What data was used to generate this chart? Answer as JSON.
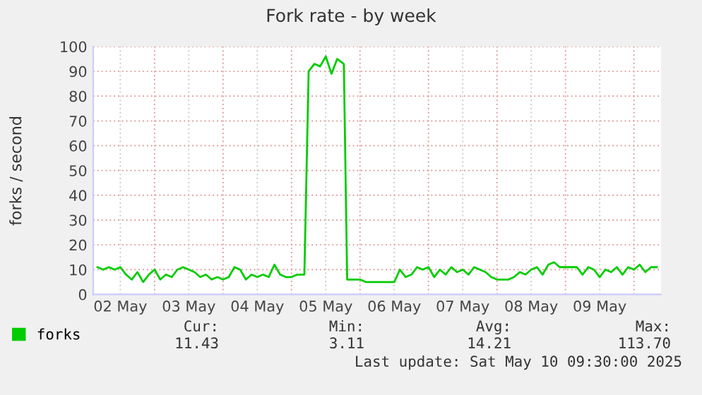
{
  "chart_data": {
    "type": "line",
    "title": "Fork rate - by week",
    "ylabel": "forks / second",
    "x": [
      "2025-05-02T04:00",
      "2025-05-02T06:00",
      "2025-05-02T08:00",
      "2025-05-02T10:00",
      "2025-05-02T12:00",
      "2025-05-02T14:00",
      "2025-05-02T16:00",
      "2025-05-02T18:00",
      "2025-05-02T20:00",
      "2025-05-02T22:00",
      "2025-05-03T00:00",
      "2025-05-03T02:00",
      "2025-05-03T04:00",
      "2025-05-03T06:00",
      "2025-05-03T08:00",
      "2025-05-03T10:00",
      "2025-05-03T12:00",
      "2025-05-03T14:00",
      "2025-05-03T16:00",
      "2025-05-03T18:00",
      "2025-05-03T20:00",
      "2025-05-03T22:00",
      "2025-05-04T00:00",
      "2025-05-04T02:00",
      "2025-05-04T04:00",
      "2025-05-04T06:00",
      "2025-05-04T08:00",
      "2025-05-04T10:00",
      "2025-05-04T12:00",
      "2025-05-04T14:00",
      "2025-05-04T16:00",
      "2025-05-04T18:00",
      "2025-05-04T20:00",
      "2025-05-04T22:00",
      "2025-05-05T00:00",
      "2025-05-05T02:00",
      "2025-05-05T04:30",
      "2025-05-05T06:00",
      "2025-05-05T08:00",
      "2025-05-05T10:00",
      "2025-05-05T12:00",
      "2025-05-05T14:00",
      "2025-05-05T16:00",
      "2025-05-05T18:20",
      "2025-05-05T19:30",
      "2025-05-05T22:00",
      "2025-05-06T00:00",
      "2025-05-06T02:00",
      "2025-05-06T04:00",
      "2025-05-06T06:00",
      "2025-05-06T08:00",
      "2025-05-06T10:00",
      "2025-05-06T12:00",
      "2025-05-06T14:00",
      "2025-05-06T16:00",
      "2025-05-06T18:00",
      "2025-05-06T20:00",
      "2025-05-06T22:00",
      "2025-05-07T00:00",
      "2025-05-07T02:00",
      "2025-05-07T04:00",
      "2025-05-07T06:00",
      "2025-05-07T08:00",
      "2025-05-07T10:00",
      "2025-05-07T12:00",
      "2025-05-07T14:00",
      "2025-05-07T16:00",
      "2025-05-07T18:00",
      "2025-05-07T20:00",
      "2025-05-07T22:00",
      "2025-05-08T00:00",
      "2025-05-08T02:00",
      "2025-05-08T04:00",
      "2025-05-08T06:00",
      "2025-05-08T08:00",
      "2025-05-08T10:00",
      "2025-05-08T12:00",
      "2025-05-08T14:00",
      "2025-05-08T16:00",
      "2025-05-08T18:00",
      "2025-05-08T20:00",
      "2025-05-08T22:00",
      "2025-05-09T00:00",
      "2025-05-09T02:00",
      "2025-05-09T04:00",
      "2025-05-09T06:00",
      "2025-05-09T08:00",
      "2025-05-09T10:00",
      "2025-05-09T12:00",
      "2025-05-09T14:00",
      "2025-05-09T16:00",
      "2025-05-09T18:00",
      "2025-05-09T20:00",
      "2025-05-09T22:00",
      "2025-05-10T00:00",
      "2025-05-10T02:00",
      "2025-05-10T04:00",
      "2025-05-10T06:00",
      "2025-05-10T08:00"
    ],
    "series": [
      {
        "name": "forks",
        "color": "#00cc00",
        "values": [
          11,
          10,
          11,
          10,
          11,
          8,
          6,
          9,
          5,
          8,
          10,
          6,
          8,
          7,
          10,
          11,
          10,
          9,
          7,
          8,
          6,
          7,
          6,
          7,
          11,
          10,
          6,
          8,
          7,
          8,
          7,
          12,
          8,
          7,
          7,
          8,
          8,
          90,
          93,
          92,
          96,
          89,
          95,
          93,
          6,
          6,
          6,
          5,
          5,
          5,
          5,
          5,
          5,
          10,
          7,
          8,
          11,
          10,
          11,
          7,
          10,
          8,
          11,
          9,
          10,
          8,
          11,
          10,
          9,
          7,
          6,
          6,
          6,
          7,
          9,
          8,
          10,
          11,
          8,
          12,
          13,
          11,
          11,
          11,
          11,
          8,
          11,
          10,
          7,
          10,
          9,
          11,
          8,
          11,
          10,
          12,
          9,
          11,
          11
        ]
      }
    ],
    "xlim": [
      "2025-05-02T02:30",
      "2025-05-10T09:30"
    ],
    "xticks": [
      {
        "value": "2025-05-02T12:00",
        "label": "02 May"
      },
      {
        "value": "2025-05-03T00:00",
        "label": null
      },
      {
        "value": "2025-05-03T12:00",
        "label": "03 May"
      },
      {
        "value": "2025-05-04T00:00",
        "label": null
      },
      {
        "value": "2025-05-04T12:00",
        "label": "04 May"
      },
      {
        "value": "2025-05-05T00:00",
        "label": null
      },
      {
        "value": "2025-05-05T12:00",
        "label": "05 May"
      },
      {
        "value": "2025-05-06T00:00",
        "label": null
      },
      {
        "value": "2025-05-06T12:00",
        "label": "06 May"
      },
      {
        "value": "2025-05-07T00:00",
        "label": null
      },
      {
        "value": "2025-05-07T12:00",
        "label": "07 May"
      },
      {
        "value": "2025-05-08T00:00",
        "label": null
      },
      {
        "value": "2025-05-08T12:00",
        "label": "08 May"
      },
      {
        "value": "2025-05-09T00:00",
        "label": null
      },
      {
        "value": "2025-05-09T12:00",
        "label": "09 May"
      },
      {
        "value": "2025-05-10T00:00",
        "label": null
      }
    ],
    "ylim": [
      0,
      100
    ],
    "yticks": [
      0,
      10,
      20,
      30,
      40,
      50,
      60,
      70,
      80,
      90,
      100
    ],
    "grid": true,
    "legend": "bottom left",
    "annotations": [
      "Cur:",
      "Min:",
      "Avg:",
      "Max:",
      "11.43",
      "3.11",
      "14.21",
      "113.70",
      "Last update: Sat May 10 09:30:00 2025"
    ]
  }
}
